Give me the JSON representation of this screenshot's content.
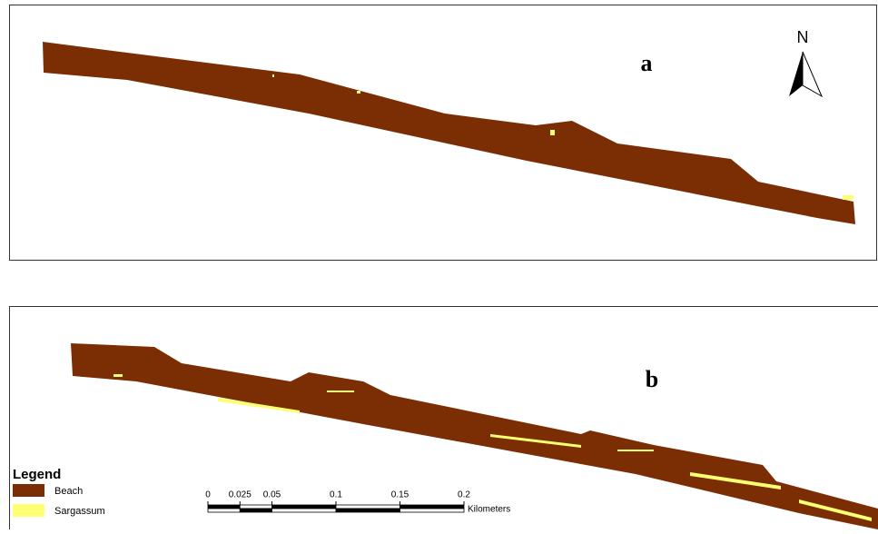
{
  "panels": [
    {
      "label": "a"
    },
    {
      "label": "b"
    }
  ],
  "north_arrow": {
    "label": "N"
  },
  "legend": {
    "title": "Legend",
    "items": [
      {
        "label": "Beach",
        "color": "#7b2d04"
      },
      {
        "label": "Sargassum",
        "color": "#ffff73"
      }
    ]
  },
  "scale_bar": {
    "ticks": [
      0,
      0.025,
      0.05,
      0.1,
      0.15,
      0.2
    ],
    "unit": "Kilometers"
  }
}
